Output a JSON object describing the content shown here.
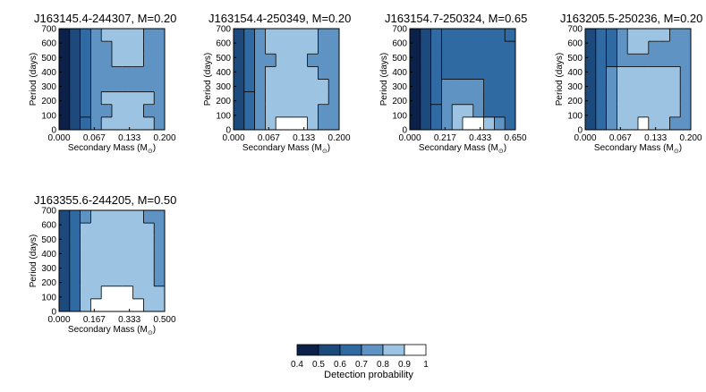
{
  "chart_data": [
    {
      "type": "heatmap",
      "title": "J163145.4-244307, M=0.20",
      "xlabel": "Secondary Mass (M",
      "xlabel_sub": "⊙",
      "xlabel_end": ")",
      "ylabel": "Period (days)",
      "xlim": [
        0,
        0.2
      ],
      "ylim": [
        0,
        700
      ],
      "xticks": [
        "0.000",
        "0.067",
        "0.133",
        "0.200"
      ],
      "yticks": [
        "0",
        "100",
        "200",
        "300",
        "400",
        "500",
        "600",
        "700"
      ],
      "regions": [
        {
          "level": 0.4,
          "bounds": [
            [
              0.0,
              0.012
            ],
            [
              0.0,
              0.012
            ],
            [
              0.0,
              0.01
            ],
            [
              0.0,
              0.01
            ],
            [
              0.0,
              0.01
            ],
            [
              0.0,
              0.008
            ],
            [
              0.0,
              0.008
            ],
            [
              0.0,
              0.01
            ]
          ]
        },
        {
          "level": 0.5,
          "bounds": [
            [
              0.012,
              0.022
            ],
            [
              0.012,
              0.025
            ],
            [
              0.01,
              0.02
            ],
            [
              0.01,
              0.018
            ],
            [
              0.01,
              0.018
            ],
            [
              0.008,
              0.018
            ],
            [
              0.008,
              0.018
            ],
            [
              0.01,
              0.018
            ]
          ]
        },
        {
          "level": 0.6,
          "bounds": [
            [
              0.022,
              0.035
            ],
            [
              0.025,
              0.03
            ],
            [
              0.02,
              0.03
            ],
            [
              0.018,
              0.035
            ],
            [
              0.018,
              0.04
            ],
            [
              0.018,
              0.03
            ],
            [
              0.018,
              0.03
            ],
            [
              0.018,
              0.03
            ]
          ]
        }
      ],
      "cells": [
        [
          0.4,
          0.5,
          0.6,
          0.8,
          0.9,
          0.9,
          0.9,
          0.9,
          0.9,
          0.8
        ],
        [
          0.4,
          0.5,
          0.7,
          0.8,
          0.8,
          0.9,
          0.9,
          0.9,
          0.8,
          0.8
        ],
        [
          0.4,
          0.5,
          0.7,
          0.8,
          0.9,
          0.9,
          0.9,
          0.9,
          0.9,
          0.8
        ],
        [
          0.4,
          0.5,
          0.7,
          0.8,
          0.8,
          0.8,
          0.8,
          0.8,
          0.8,
          0.8
        ],
        [
          0.4,
          0.5,
          0.7,
          0.8,
          0.8,
          0.8,
          0.8,
          0.8,
          0.8,
          0.8
        ],
        [
          0.4,
          0.5,
          0.7,
          0.8,
          0.8,
          0.9,
          0.9,
          0.9,
          0.8,
          0.8
        ],
        [
          0.4,
          0.5,
          0.7,
          0.8,
          0.8,
          0.9,
          0.9,
          0.9,
          0.8,
          0.8
        ],
        [
          0.4,
          0.5,
          0.7,
          0.8,
          0.9,
          0.9,
          0.9,
          0.9,
          0.8,
          0.8
        ]
      ]
    },
    {
      "type": "heatmap",
      "title": "J163154.4-250349, M=0.20",
      "xlabel": "Secondary Mass (M",
      "xlabel_sub": "⊙",
      "xlabel_end": ")",
      "ylabel": "Period (days)",
      "xlim": [
        0,
        0.2
      ],
      "ylim": [
        0,
        700
      ],
      "xticks": [
        "0.000",
        "0.067",
        "0.133",
        "0.200"
      ],
      "yticks": [
        "0",
        "100",
        "200",
        "300",
        "400",
        "500",
        "600",
        "700"
      ],
      "cells": [
        [
          0.5,
          0.6,
          0.8,
          0.9,
          1.0,
          1.0,
          1.0,
          0.9,
          0.8,
          0.8
        ],
        [
          0.5,
          0.6,
          0.8,
          0.9,
          0.9,
          0.9,
          0.9,
          0.9,
          0.8,
          0.8
        ],
        [
          0.5,
          0.6,
          0.8,
          0.9,
          0.9,
          0.9,
          0.9,
          0.9,
          0.9,
          0.8
        ],
        [
          0.5,
          0.7,
          0.8,
          0.9,
          0.9,
          0.9,
          0.9,
          0.9,
          0.9,
          0.8
        ],
        [
          0.5,
          0.7,
          0.8,
          0.9,
          0.9,
          0.9,
          0.9,
          0.9,
          0.8,
          0.8
        ],
        [
          0.5,
          0.7,
          0.8,
          0.8,
          0.9,
          0.9,
          0.9,
          0.8,
          0.8,
          0.8
        ],
        [
          0.5,
          0.7,
          0.8,
          0.9,
          0.9,
          0.9,
          0.9,
          0.9,
          0.8,
          0.8
        ],
        [
          0.5,
          0.7,
          0.8,
          0.9,
          0.9,
          0.9,
          0.9,
          0.9,
          0.8,
          0.8
        ]
      ]
    },
    {
      "type": "heatmap",
      "title": "J163154.7-250324, M=0.65",
      "xlabel": "Secondary Mass (M",
      "xlabel_sub": "⊙",
      "xlabel_end": ")",
      "ylabel": "Period (days)",
      "xlim": [
        0,
        0.65
      ],
      "ylim": [
        0,
        700
      ],
      "xticks": [
        "0.000",
        "0.217",
        "0.433",
        "0.650"
      ],
      "yticks": [
        "0",
        "100",
        "200",
        "300",
        "400",
        "500",
        "600",
        "700"
      ],
      "cells": [
        [
          0.4,
          0.5,
          0.7,
          0.8,
          0.9,
          1.0,
          1.0,
          0.9,
          0.8,
          0.7
        ],
        [
          0.4,
          0.5,
          0.7,
          0.8,
          0.9,
          0.9,
          0.8,
          0.7,
          0.7,
          0.7
        ],
        [
          0.4,
          0.5,
          0.6,
          0.8,
          0.8,
          0.8,
          0.8,
          0.7,
          0.7,
          0.7
        ],
        [
          0.4,
          0.5,
          0.6,
          0.8,
          0.8,
          0.8,
          0.8,
          0.7,
          0.7,
          0.7
        ],
        [
          0.4,
          0.5,
          0.6,
          0.7,
          0.7,
          0.7,
          0.7,
          0.7,
          0.7,
          0.7
        ],
        [
          0.4,
          0.5,
          0.6,
          0.7,
          0.7,
          0.7,
          0.7,
          0.7,
          0.7,
          0.7
        ],
        [
          0.4,
          0.5,
          0.6,
          0.7,
          0.7,
          0.7,
          0.7,
          0.7,
          0.7,
          0.7
        ],
        [
          0.4,
          0.5,
          0.6,
          0.7,
          0.7,
          0.7,
          0.7,
          0.7,
          0.7,
          0.6
        ]
      ]
    },
    {
      "type": "heatmap",
      "title": "J163205.5-250236, M=0.20",
      "xlabel": "Secondary Mass (M",
      "xlabel_sub": "⊙",
      "xlabel_end": ")",
      "ylabel": "Period (days)",
      "xlim": [
        0,
        0.2
      ],
      "ylim": [
        0,
        700
      ],
      "xticks": [
        "0.000",
        "0.067",
        "0.133",
        "0.200"
      ],
      "yticks": [
        "0",
        "100",
        "200",
        "300",
        "400",
        "500",
        "600",
        "700"
      ],
      "cells": [
        [
          0.5,
          0.6,
          0.8,
          0.9,
          0.9,
          1.0,
          0.9,
          0.9,
          0.8,
          0.8
        ],
        [
          0.5,
          0.6,
          0.8,
          0.9,
          0.9,
          0.9,
          0.9,
          0.9,
          0.9,
          0.8
        ],
        [
          0.5,
          0.6,
          0.8,
          0.9,
          0.9,
          0.9,
          0.9,
          0.9,
          0.9,
          0.8
        ],
        [
          0.5,
          0.6,
          0.8,
          0.9,
          0.9,
          0.9,
          0.9,
          0.9,
          0.9,
          0.8
        ],
        [
          0.5,
          0.6,
          0.8,
          0.9,
          0.9,
          0.9,
          0.9,
          0.9,
          0.9,
          0.8
        ],
        [
          0.5,
          0.6,
          0.7,
          0.8,
          0.8,
          0.8,
          0.8,
          0.8,
          0.8,
          0.8
        ],
        [
          0.5,
          0.6,
          0.7,
          0.8,
          0.9,
          0.9,
          0.8,
          0.8,
          0.8,
          0.8
        ],
        [
          0.5,
          0.6,
          0.7,
          0.8,
          0.9,
          0.9,
          0.9,
          0.9,
          0.8,
          0.8
        ]
      ]
    },
    {
      "type": "heatmap",
      "title": "J163355.6-244205, M=0.50",
      "xlabel": "Secondary Mass (M",
      "xlabel_sub": "⊙",
      "xlabel_end": ")",
      "ylabel": "Period (days)",
      "xlim": [
        0,
        0.5
      ],
      "ylim": [
        0,
        700
      ],
      "xticks": [
        "0.000",
        "0.167",
        "0.333",
        "0.500"
      ],
      "yticks": [
        "0",
        "100",
        "200",
        "300",
        "400",
        "500",
        "600",
        "700"
      ],
      "cells": [
        [
          0.5,
          0.7,
          0.9,
          1.0,
          1.0,
          1.0,
          1.0,
          1.0,
          0.9,
          0.9
        ],
        [
          0.5,
          0.7,
          0.9,
          0.9,
          1.0,
          1.0,
          1.0,
          0.9,
          0.9,
          0.9
        ],
        [
          0.5,
          0.7,
          0.9,
          0.9,
          0.9,
          0.9,
          0.9,
          0.9,
          0.9,
          0.8
        ],
        [
          0.5,
          0.7,
          0.9,
          0.9,
          0.9,
          0.9,
          0.9,
          0.9,
          0.9,
          0.8
        ],
        [
          0.5,
          0.7,
          0.9,
          0.9,
          0.9,
          0.9,
          0.9,
          0.9,
          0.9,
          0.8
        ],
        [
          0.5,
          0.7,
          0.9,
          0.9,
          0.9,
          0.9,
          0.9,
          0.9,
          0.9,
          0.8
        ],
        [
          0.5,
          0.7,
          0.9,
          0.9,
          0.9,
          0.9,
          0.9,
          0.9,
          0.9,
          0.8
        ],
        [
          0.5,
          0.7,
          0.8,
          0.9,
          0.9,
          0.9,
          0.9,
          0.9,
          0.8,
          0.8
        ]
      ]
    }
  ],
  "colorbar": {
    "title": "Detection probability",
    "ticks": [
      "0.4",
      "0.5",
      "0.6",
      "0.7",
      "0.8",
      "0.9",
      "1"
    ],
    "colors": [
      "#0b2149",
      "#1c4a7d",
      "#2f6aa3",
      "#5f93c4",
      "#9cc4e2",
      "#ffffff"
    ]
  }
}
